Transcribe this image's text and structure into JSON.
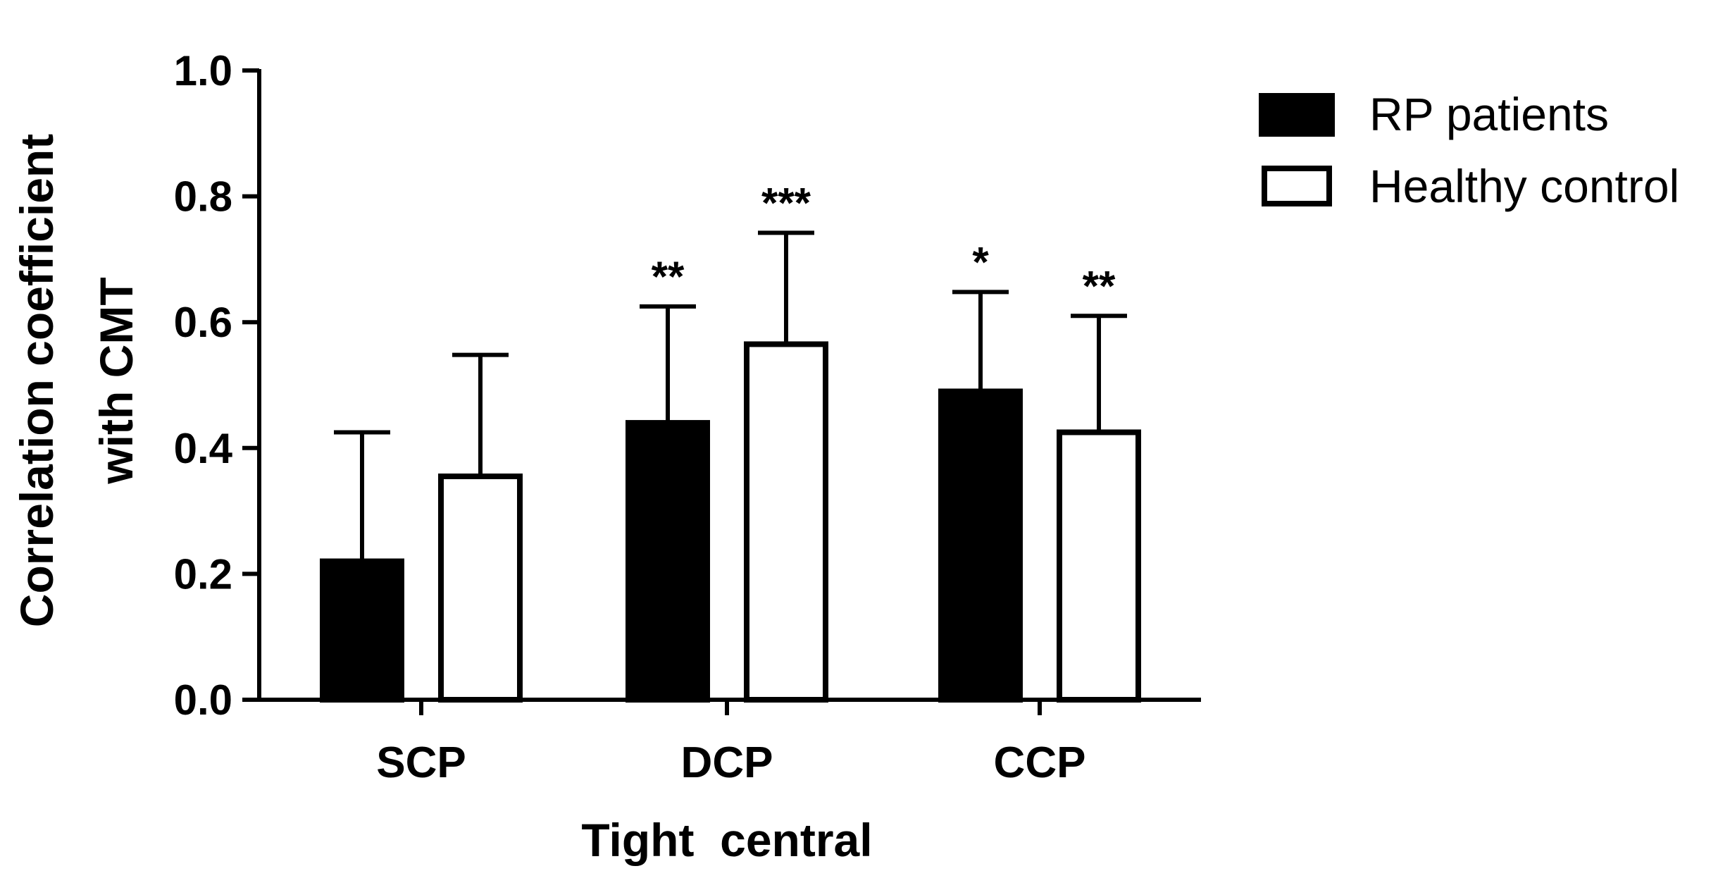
{
  "chart_data": {
    "type": "bar",
    "title": "",
    "xlabel": "Tight  central",
    "ylabel_lines": [
      "Correlation coefficient",
      "with CMT"
    ],
    "ylim": [
      0,
      1.0
    ],
    "yticks": [
      "0.0",
      "0.2",
      "0.4",
      "0.6",
      "0.8",
      "1.0"
    ],
    "ytick_values": [
      0,
      0.2,
      0.4,
      0.6,
      0.8,
      1.0
    ],
    "categories": [
      "SCP",
      "DCP",
      "CCP"
    ],
    "series": [
      {
        "name": "RP patients",
        "fill": "#000000",
        "values": [
          0.22,
          0.44,
          0.49
        ],
        "error_upper": [
          0.425,
          0.625,
          0.648
        ],
        "significance": [
          "",
          "**",
          "*"
        ]
      },
      {
        "name": "Healthy control",
        "fill": "#ffffff",
        "values": [
          0.355,
          0.565,
          0.425
        ],
        "error_upper": [
          0.548,
          0.742,
          0.61
        ],
        "significance": [
          "",
          "***",
          "**"
        ]
      }
    ],
    "legend_position": "top-right",
    "grid": false
  }
}
